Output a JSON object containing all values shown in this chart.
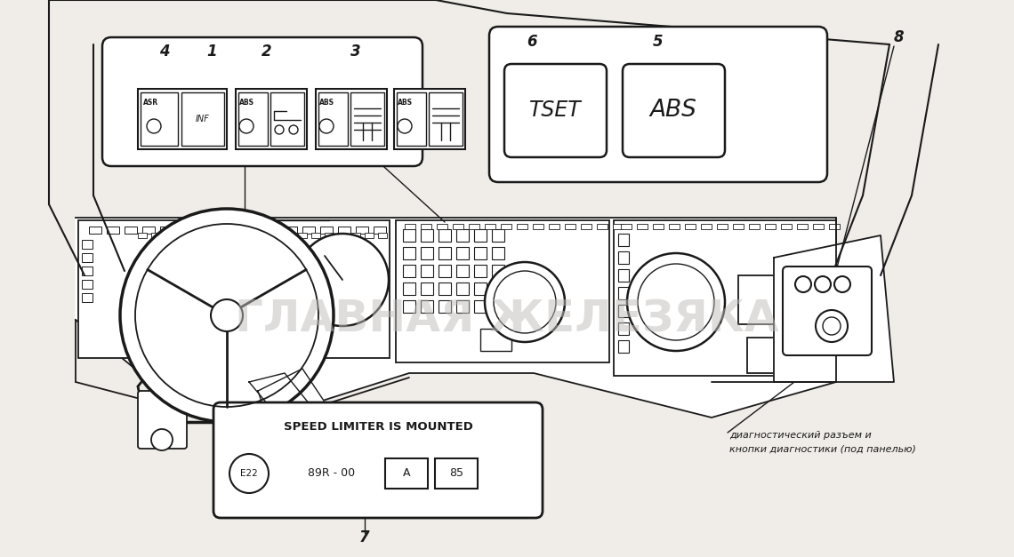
{
  "bg_color": "#f0ede8",
  "line_color": "#1a1a1a",
  "label_4": "4",
  "label_1": "1",
  "label_2": "2",
  "label_3": "3",
  "label_6": "6",
  "label_5": "5",
  "label_8": "8",
  "label_7": "7",
  "text_TSET": "TSET",
  "text_ABS_btn": "ABS",
  "text_speed": "SPEED LIMITER IS MOUNTED",
  "text_diag1": "диагностический разъем и",
  "text_diag2": "кнопки диагностики (под панелью)"
}
